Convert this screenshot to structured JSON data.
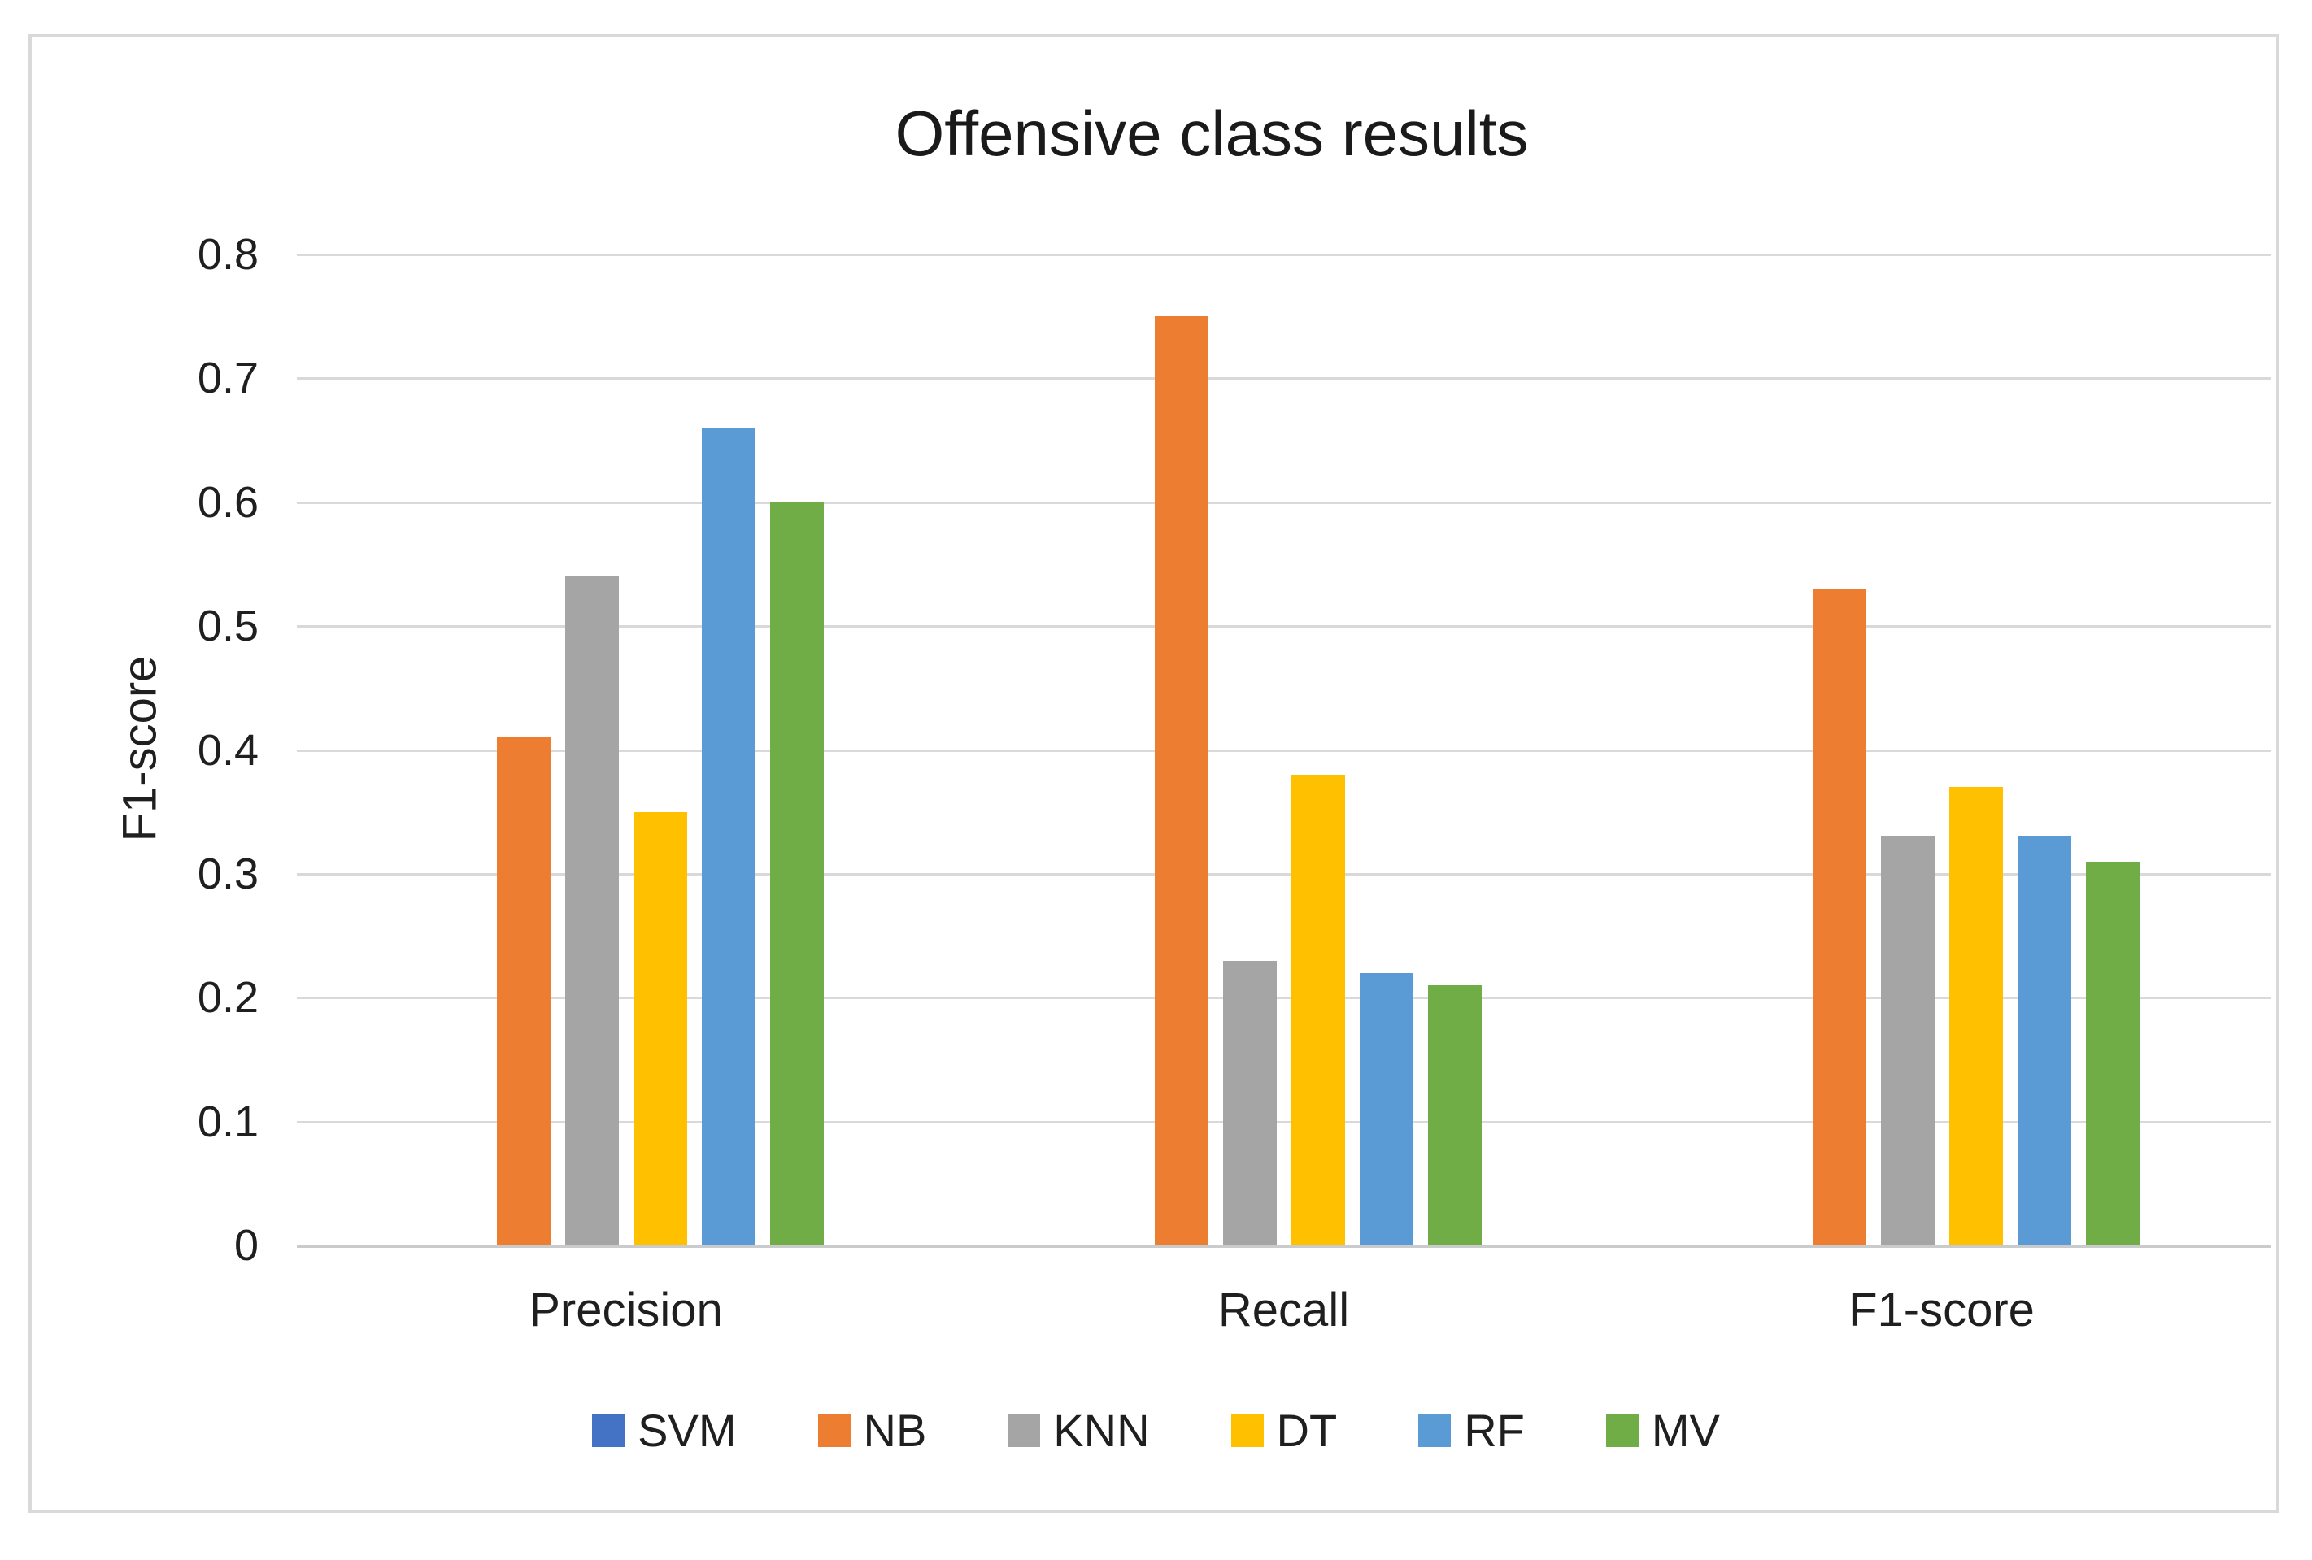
{
  "chart_data": {
    "type": "bar",
    "title": "Offensive class results",
    "ylabel": "F1-score",
    "xlabel": "",
    "categories": [
      "Precision",
      "Recall",
      "F1-score"
    ],
    "series": [
      {
        "name": "SVM",
        "color": "#4472C4",
        "values": [
          0,
          0,
          0
        ]
      },
      {
        "name": "NB",
        "color": "#ED7D31",
        "values": [
          0.41,
          0.75,
          0.53
        ]
      },
      {
        "name": "KNN",
        "color": "#A5A5A5",
        "values": [
          0.54,
          0.23,
          0.33
        ]
      },
      {
        "name": "DT",
        "color": "#FFC000",
        "values": [
          0.35,
          0.38,
          0.37
        ]
      },
      {
        "name": "RF",
        "color": "#5B9BD5",
        "values": [
          0.66,
          0.22,
          0.33
        ]
      },
      {
        "name": "MV",
        "color": "#70AD47",
        "values": [
          0.6,
          0.21,
          0.31
        ]
      }
    ],
    "ylim": [
      0,
      0.8
    ],
    "ytick_step": 0.1,
    "ytick_labels": [
      "0",
      "0.1",
      "0.2",
      "0.3",
      "0.4",
      "0.5",
      "0.6",
      "0.7",
      "0.8"
    ],
    "grid": true,
    "legend_position": "bottom",
    "colors": {
      "gridline": "#D9D9D9",
      "axis_baseline": "#C9CBCD",
      "frame_border": "#D9D9D9",
      "text": "#1f1f1f",
      "background": "#FFFFFF"
    }
  }
}
